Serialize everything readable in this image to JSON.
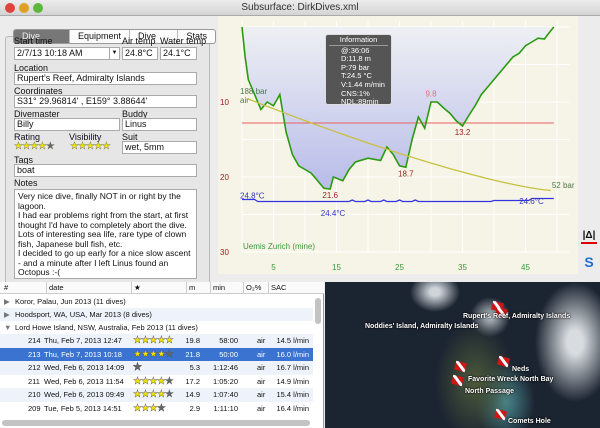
{
  "window": {
    "title": "Subsurface: DirkDives.xml"
  },
  "tabs": [
    "Dive Notes",
    "Equipment",
    "Dive Info",
    "Stats"
  ],
  "notes": {
    "start_time_label": "Start time",
    "start_time": "2/7/13 10:18 AM",
    "air_temp_label": "Air temp",
    "air_temp": "24.8°C",
    "water_temp_label": "Water temp",
    "water_temp": "24.1°C",
    "location_label": "Location",
    "location": "Rupert's Reef, Admiralty Islands",
    "coordinates_label": "Coordinates",
    "coordinates": "S31° 29.96814' , E159°  3.88644'",
    "divemaster_label": "Divemaster",
    "divemaster": "Billy",
    "buddy_label": "Buddy",
    "buddy": "Linus",
    "rating_label": "Rating",
    "rating": 4,
    "visibility_label": "Visibility",
    "visibility": 5,
    "suit_label": "Suit",
    "suit": "wet, 5mm",
    "tags_label": "Tags",
    "tags": "boat",
    "notes_label": "Notes",
    "notes_text": "Very nice dive, finally NOT in or right by the lagoon.\nI had ear problems right from the start, at first thought I'd have to completely abort the dive. Lots of interesting sea life, rare type of clown fish, Japanese bull fish, etc.\nI decided to go up early for a nice slow ascent - and a minute after I left Linus found an Octopus :-("
  },
  "info_box": {
    "title": "Information",
    "lines": [
      "@:36:06",
      "D:11.8 m",
      "P:79 bar",
      "T:24.5 °C",
      "V:1.44 m/min",
      "CNS:1%",
      "NDL:89min"
    ]
  },
  "chart_data": {
    "type": "line",
    "xlabel": "",
    "ylabel": "",
    "x_ticks": [
      5,
      15,
      25,
      35,
      45
    ],
    "y_ticks": [
      10,
      20,
      30
    ],
    "xlim": [
      0,
      52
    ],
    "ylim": [
      0,
      30
    ],
    "y_inverted": true,
    "computer": "Uemis Zurich (mine)",
    "depth_profile": [
      [
        0,
        0
      ],
      [
        0.5,
        4
      ],
      [
        1,
        7
      ],
      [
        2,
        9
      ],
      [
        3,
        11
      ],
      [
        4,
        10
      ],
      [
        5,
        10.5
      ],
      [
        6,
        9
      ],
      [
        7,
        14
      ],
      [
        8,
        17
      ],
      [
        9,
        18.5
      ],
      [
        10,
        19
      ],
      [
        11,
        19.5
      ],
      [
        12,
        20.5
      ],
      [
        13,
        21.5
      ],
      [
        14,
        21.6
      ],
      [
        14.5,
        20
      ],
      [
        16,
        20.5
      ],
      [
        17,
        19
      ],
      [
        18,
        18
      ],
      [
        20,
        17.5
      ],
      [
        22,
        17.8
      ],
      [
        23,
        16
      ],
      [
        24,
        17
      ],
      [
        25,
        18.5
      ],
      [
        26,
        18.7
      ],
      [
        27,
        15
      ],
      [
        28,
        12
      ],
      [
        29,
        13.5
      ],
      [
        30,
        10
      ],
      [
        31,
        10
      ],
      [
        32,
        10.8
      ],
      [
        33,
        11.5
      ],
      [
        34,
        12.5
      ],
      [
        35,
        13.2
      ],
      [
        36,
        11.8
      ],
      [
        37,
        10.5
      ],
      [
        38,
        9
      ],
      [
        39,
        8
      ],
      [
        40,
        7
      ],
      [
        41,
        6
      ],
      [
        42,
        5
      ],
      [
        43,
        4
      ],
      [
        44,
        3.5
      ],
      [
        45,
        2.5
      ],
      [
        46,
        2
      ],
      [
        47,
        1.5
      ],
      [
        48,
        1.6
      ],
      [
        49,
        0.5
      ],
      [
        49.5,
        0
      ]
    ],
    "depth_labels": [
      {
        "t": 14,
        "d": 21.6,
        "text": "21.6"
      },
      {
        "t": 26,
        "d": 18.7,
        "text": "18.7"
      },
      {
        "t": 30,
        "d": 9.8,
        "text": "9.8"
      },
      {
        "t": 35,
        "d": 13.2,
        "text": "13.2"
      }
    ],
    "pressure_start": "188 bar",
    "pressure_end": "52 bar",
    "gas": "air",
    "temp_start": "24.8°C",
    "temp_min": "24.4°C",
    "temp_end": "24.6°C",
    "ceiling_depth": 12.8,
    "colors": {
      "profile": "#2a9a10",
      "fill": "#b8bce8",
      "pressure": "#c8c040",
      "temp": "#3535e0",
      "ceiling": "#e86060"
    }
  },
  "dive_list": {
    "columns": [
      "#",
      "date",
      "★",
      "m",
      "min",
      "O₂%",
      "SAC"
    ],
    "trips": [
      {
        "label": "Koror, Palau, Jun 2013 (11 dives)",
        "open": false
      },
      {
        "label": "Hoodsport, WA, USA, Mar 2013 (8 dives)",
        "open": false
      },
      {
        "label": "Lord Howe Island, NSW, Australia, Feb 2013 (11 dives)",
        "open": true
      }
    ],
    "dives": [
      {
        "num": "214",
        "date": "Thu, Feb 7, 2013 12:47",
        "rating": 5,
        "depth": "19.8",
        "duration": "58:00",
        "gas": "air",
        "sac": "14.5 l/min"
      },
      {
        "num": "213",
        "date": "Thu, Feb 7, 2013 10:18",
        "rating": 4,
        "depth": "21.8",
        "duration": "50:00",
        "gas": "air",
        "sac": "16.0 l/min",
        "selected": true
      },
      {
        "num": "212",
        "date": "Wed, Feb 6, 2013 14:09",
        "rating": 0,
        "depth": "5.3",
        "duration": "1:12:46",
        "gas": "air",
        "sac": "16.7 l/min"
      },
      {
        "num": "211",
        "date": "Wed, Feb 6, 2013 11:54",
        "rating": 4,
        "depth": "17.2",
        "duration": "1:05:20",
        "gas": "air",
        "sac": "14.9 l/min"
      },
      {
        "num": "210",
        "date": "Wed, Feb 6, 2013 09:49",
        "rating": 4,
        "depth": "14.9",
        "duration": "1:07:40",
        "gas": "air",
        "sac": "15.4 l/min"
      },
      {
        "num": "209",
        "date": "Tue, Feb 5, 2013 14:51",
        "rating": 3,
        "depth": "2.9",
        "duration": "1:11:10",
        "gas": "air",
        "sac": "16.4 l/min"
      }
    ]
  },
  "map": {
    "labels": [
      "Noddies' Island, Admiralty Islands",
      "Rupert's Reef, Admiralty Islands",
      "Neds",
      "Favorite Wreck North Bay",
      "North Passage",
      "Comets Hole"
    ]
  }
}
